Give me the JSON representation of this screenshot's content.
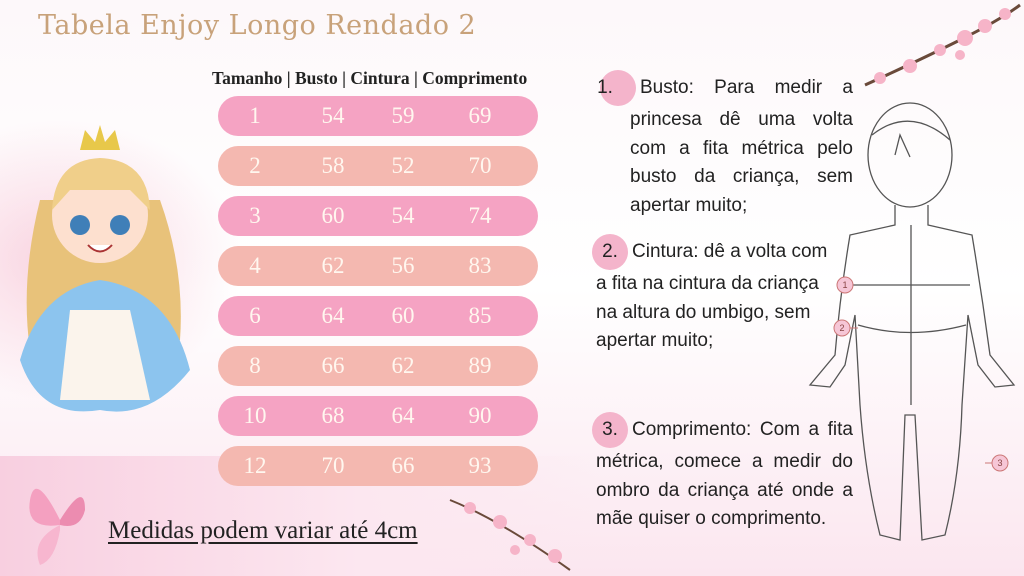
{
  "title": "Tabela Enjoy Longo Rendado 2",
  "table": {
    "header": "Tamanho | Busto | Cintura | Comprimento",
    "rows": [
      [
        "1",
        "54",
        "59",
        "69"
      ],
      [
        "2",
        "58",
        "52",
        "70"
      ],
      [
        "3",
        "60",
        "54",
        "74"
      ],
      [
        "4",
        "62",
        "56",
        "83"
      ],
      [
        "6",
        "64",
        "60",
        "85"
      ],
      [
        "8",
        "66",
        "62",
        "89"
      ],
      [
        "10",
        "68",
        "64",
        "90"
      ],
      [
        "12",
        "70",
        "66",
        "93"
      ]
    ],
    "colors": [
      "#f5a3c3",
      "#f4b8b0"
    ]
  },
  "note": "Medidas podem variar até 4cm",
  "instructions": [
    {
      "num": "1.",
      "text": "Busto: Para medir a princesa dê uma volta com a fita métrica pelo busto da criança, sem apertar muito;"
    },
    {
      "num": "2.",
      "text": "Cintura: dê a volta com a fita na cintura da criança na altura do umbigo, sem apertar muito;"
    },
    {
      "num": "3.",
      "text": "Comprimento: Com a fita métrica, comece a medir do ombro da criança até onde a mãe quiser o comprimento."
    }
  ],
  "figure_markers": [
    "1",
    "2",
    "3"
  ]
}
